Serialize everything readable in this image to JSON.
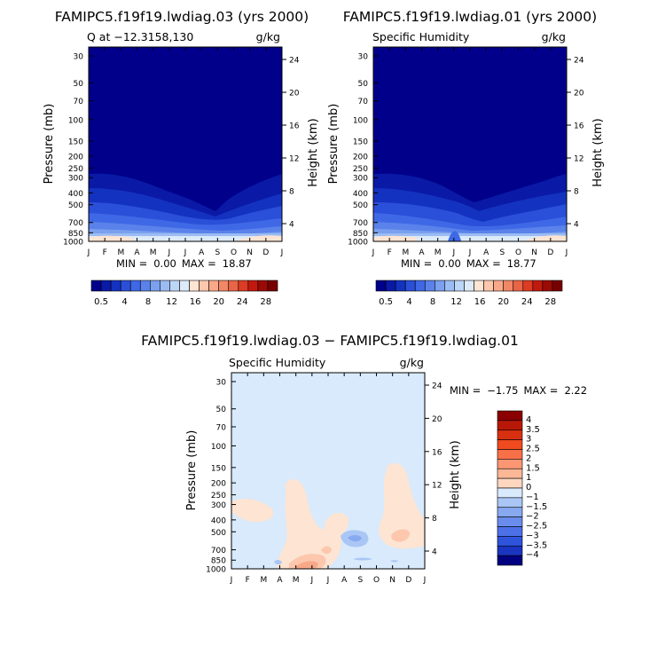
{
  "page": {
    "panel_left_title": "FAMIPC5.f19f19.lwdiag.03 (yrs 2000)",
    "panel_right_title": "FAMIPC5.f19f19.lwdiag.01 (yrs 2000)",
    "diff_title": "FAMIPC5.f19f19.lwdiag.03 − FAMIPC5.f19f19.lwdiag.01"
  },
  "colors": {
    "base_fill": "#00008b",
    "diff_fill": "#d8eafc"
  },
  "chart_data": [
    {
      "type": "heatmap",
      "name": "left",
      "title": "FAMIPC5.f19f19.lwdiag.03 (yrs 2000)",
      "subtitle_left": "Q at −12.3158,130",
      "subtitle_right": "g/kg",
      "ylabel": "Pressure (mb)",
      "ylabel_right": "Height (km)",
      "x": [
        "J",
        "F",
        "M",
        "A",
        "M",
        "J",
        "J",
        "A",
        "S",
        "O",
        "N",
        "D",
        "J"
      ],
      "pressure_ticks": [
        "30",
        "50",
        "70",
        "100",
        "150",
        "200",
        "250",
        "300",
        "400",
        "500",
        "700",
        "850",
        "1000"
      ],
      "height_ticks": [
        "24",
        "20",
        "16",
        "12",
        "8",
        "4"
      ],
      "stats": {
        "min_label": "MIN =",
        "min": "0.00",
        "max_label": "MAX =",
        "max": "18.87"
      },
      "colorbar": {
        "colors": [
          "#00008b",
          "#0a1aa6",
          "#1432c0",
          "#2a4fd8",
          "#3f68e6",
          "#5a82ea",
          "#7aa0ee",
          "#9bbcf3",
          "#bcd6f7",
          "#dceaf9",
          "#fde4d3",
          "#fcc7ad",
          "#f8a888",
          "#f28766",
          "#ea6446",
          "#dc3b24",
          "#c2190f",
          "#9c0a06",
          "#780000"
        ],
        "labels": [
          "0.5",
          "4",
          "8",
          "12",
          "16",
          "20",
          "24",
          "28"
        ]
      }
    },
    {
      "type": "heatmap",
      "name": "right",
      "title": "FAMIPC5.f19f19.lwdiag.01 (yrs 2000)",
      "subtitle_left": "Specific Humidity",
      "subtitle_right": "g/kg",
      "ylabel": "Pressure (mb)",
      "ylabel_right": "Height (km)",
      "x": [
        "J",
        "F",
        "M",
        "A",
        "M",
        "J",
        "J",
        "A",
        "S",
        "O",
        "N",
        "D",
        "J"
      ],
      "pressure_ticks": [
        "30",
        "50",
        "70",
        "100",
        "150",
        "200",
        "250",
        "300",
        "400",
        "500",
        "700",
        "850",
        "1000"
      ],
      "height_ticks": [
        "24",
        "20",
        "16",
        "12",
        "8",
        "4"
      ],
      "stats": {
        "min_label": "MIN =",
        "min": "0.00",
        "max_label": "MAX =",
        "max": "18.77"
      },
      "colorbar": {
        "colors": [
          "#00008b",
          "#0a1aa6",
          "#1432c0",
          "#2a4fd8",
          "#3f68e6",
          "#5a82ea",
          "#7aa0ee",
          "#9bbcf3",
          "#bcd6f7",
          "#dceaf9",
          "#fde4d3",
          "#fcc7ad",
          "#f8a888",
          "#f28766",
          "#ea6446",
          "#dc3b24",
          "#c2190f",
          "#9c0a06",
          "#780000"
        ],
        "labels": [
          "0.5",
          "4",
          "8",
          "12",
          "16",
          "20",
          "24",
          "28"
        ]
      }
    },
    {
      "type": "heatmap",
      "name": "difference",
      "title": "FAMIPC5.f19f19.lwdiag.03 − FAMIPC5.f19f19.lwdiag.01",
      "subtitle_left": "Specific Humidity",
      "subtitle_right": "g/kg",
      "ylabel": "Pressure (mb)",
      "ylabel_right": "Height (km)",
      "x": [
        "J",
        "F",
        "M",
        "A",
        "M",
        "J",
        "J",
        "A",
        "S",
        "O",
        "N",
        "D",
        "J"
      ],
      "pressure_ticks": [
        "30",
        "50",
        "70",
        "100",
        "150",
        "200",
        "250",
        "300",
        "400",
        "500",
        "700",
        "850",
        "1000"
      ],
      "height_ticks": [
        "24",
        "20",
        "16",
        "12",
        "8",
        "4"
      ],
      "stats": {
        "min_label": "MIN =",
        "min": "−1.75",
        "max_label": "MAX =",
        "max": "2.22"
      },
      "colorbar": {
        "colors": [
          "#8b0000",
          "#b81808",
          "#d83010",
          "#f04a20",
          "#f87048",
          "#fb9673",
          "#fcb796",
          "#fdd7bf",
          "#d8eafc",
          "#a9c6f5",
          "#86a9ef",
          "#6a8ced",
          "#4c70e8",
          "#2f54dc",
          "#1a35c0",
          "#000080"
        ],
        "labels": [
          "4",
          "3.5",
          "3",
          "2.5",
          "2",
          "1.5",
          "1",
          "0",
          "−1",
          "−1.5",
          "−2",
          "−2.5",
          "−3",
          "−3.5",
          "−4"
        ]
      }
    }
  ]
}
